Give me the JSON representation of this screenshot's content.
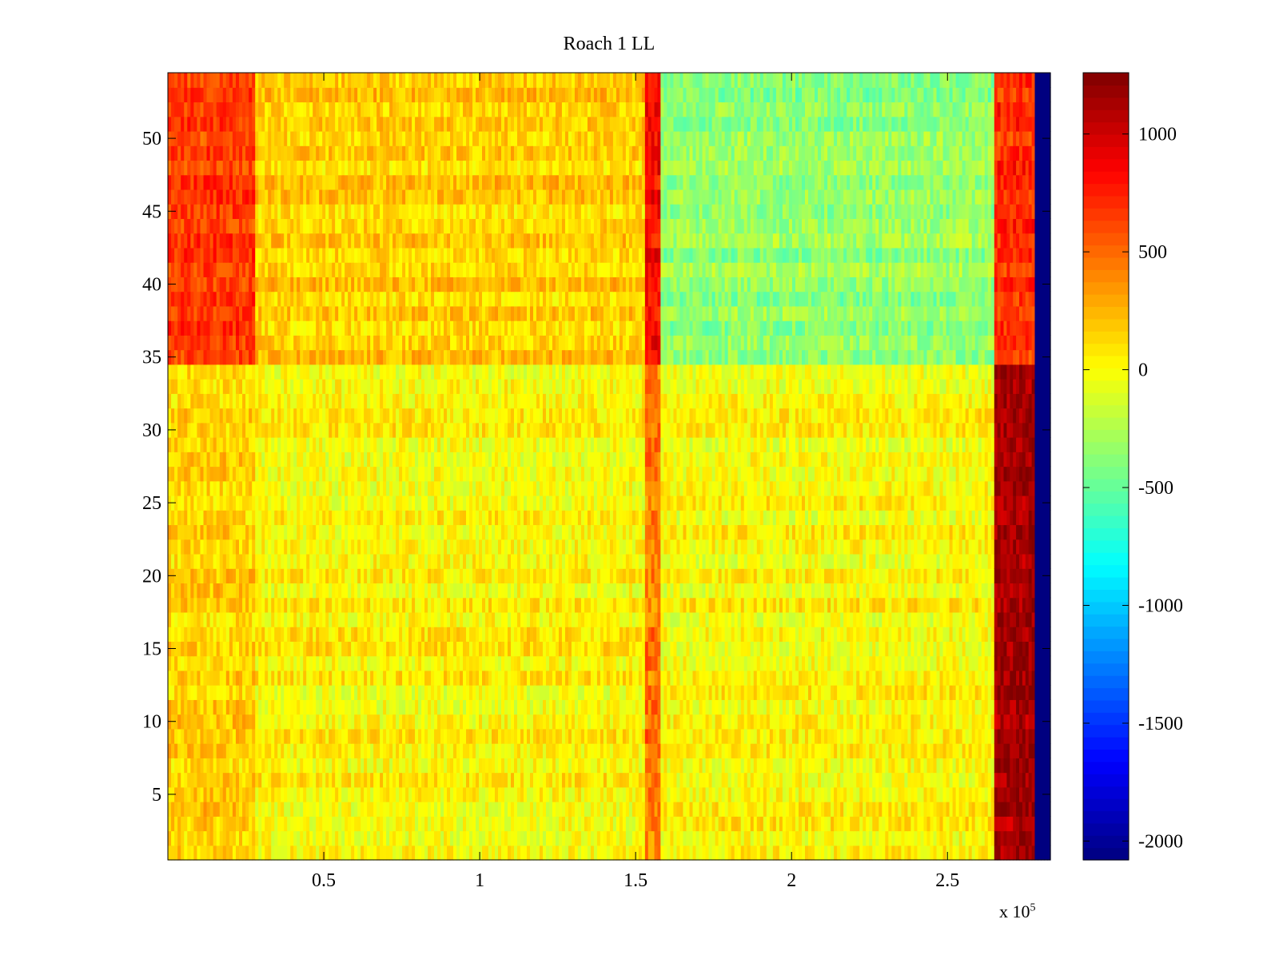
{
  "chart_data": {
    "type": "heatmap",
    "title": "Roach 1 LL",
    "xlabel": "",
    "ylabel": "",
    "x_exponent_label": {
      "prefix": "x 10",
      "power": "5"
    },
    "x_range": [
      0,
      283000
    ],
    "y_range": [
      0.5,
      54.5
    ],
    "x_ticks": [
      {
        "value": 0.5,
        "label": "0.5"
      },
      {
        "value": 1,
        "label": "1"
      },
      {
        "value": 1.5,
        "label": "1.5"
      },
      {
        "value": 2,
        "label": "2"
      },
      {
        "value": 2.5,
        "label": "2.5"
      }
    ],
    "y_ticks": [
      {
        "value": 5,
        "label": "5"
      },
      {
        "value": 10,
        "label": "10"
      },
      {
        "value": 15,
        "label": "15"
      },
      {
        "value": 20,
        "label": "20"
      },
      {
        "value": 25,
        "label": "25"
      },
      {
        "value": 30,
        "label": "30"
      },
      {
        "value": 35,
        "label": "35"
      },
      {
        "value": 40,
        "label": "40"
      },
      {
        "value": 45,
        "label": "45"
      },
      {
        "value": 50,
        "label": "50"
      }
    ],
    "colormap": "jet",
    "colorbar": {
      "range": [
        -2080,
        1260
      ],
      "ticks": [
        {
          "value": 1000,
          "label": "1000"
        },
        {
          "value": 500,
          "label": "500"
        },
        {
          "value": 0,
          "label": "0"
        },
        {
          "value": -500,
          "label": "-500"
        },
        {
          "value": -1000,
          "label": "-1000"
        },
        {
          "value": -1500,
          "label": "-1500"
        },
        {
          "value": -2000,
          "label": "-2000"
        }
      ]
    },
    "rows": 54,
    "segments": [
      {
        "name": "segment-1",
        "x_start": 0,
        "x_end": 28000,
        "baseline": 150,
        "row_profile": [
          {
            "rows": [
              35,
              54
            ],
            "value": 650
          },
          {
            "rows": [
              1,
              34
            ],
            "value": 150
          }
        ]
      },
      {
        "name": "segment-2",
        "x_start": 28000,
        "x_end": 153000,
        "baseline": 120,
        "row_profile": [
          {
            "rows": [
              35,
              54
            ],
            "value": 170
          },
          {
            "rows": [
              1,
              34
            ],
            "value": 30
          }
        ]
      },
      {
        "name": "transition-band",
        "x_start": 153000,
        "x_end": 158000,
        "baseline": 600,
        "row_profile": [
          {
            "rows": [
              35,
              54
            ],
            "value": 850
          },
          {
            "rows": [
              1,
              34
            ],
            "value": 450
          }
        ]
      },
      {
        "name": "segment-3",
        "x_start": 158000,
        "x_end": 265000,
        "baseline": 50,
        "row_profile": [
          {
            "rows": [
              35,
              54
            ],
            "value": -350
          },
          {
            "rows": [
              1,
              34
            ],
            "value": 20
          }
        ]
      },
      {
        "name": "segment-4",
        "x_start": 265000,
        "x_end": 278000,
        "baseline": 900,
        "row_profile": [
          {
            "rows": [
              1,
              34
            ],
            "value": 1150
          },
          {
            "rows": [
              35,
              54
            ],
            "value": 700
          }
        ]
      },
      {
        "name": "empty-tail",
        "x_start": 278000,
        "x_end": 283000,
        "baseline": -2080
      }
    ],
    "grid": false
  }
}
